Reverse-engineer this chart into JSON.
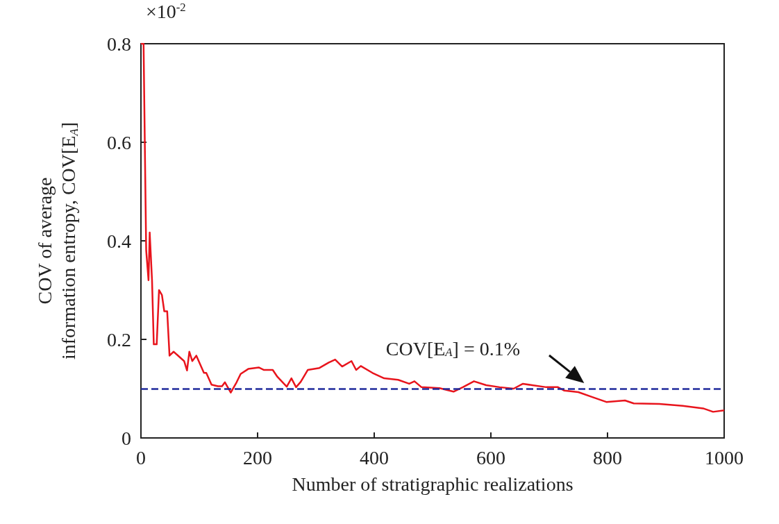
{
  "chart_data": {
    "type": "line",
    "xlabel": "Number of stratigraphic realizations",
    "ylabel": "COV of average\ninformation entropy, COV[E$_{A}$]",
    "annotations": [
      "×10$^{-2}$"
    ],
    "x": [
      0,
      4.5,
      8,
      9,
      13,
      15,
      19,
      22,
      27,
      31,
      36,
      40,
      45,
      49,
      56,
      74,
      79,
      83,
      88,
      95,
      108,
      112,
      121,
      132,
      139,
      144,
      154,
      164,
      171,
      184,
      202,
      211,
      226,
      234,
      250,
      258,
      266,
      274,
      286,
      306,
      322,
      333,
      345,
      361,
      369,
      377,
      397,
      417,
      441,
      460,
      469,
      481,
      512,
      536,
      552,
      571,
      592,
      615,
      639,
      655,
      671,
      695,
      715,
      726,
      750,
      774,
      798,
      830,
      845,
      889,
      929,
      964,
      981,
      1000
    ],
    "series": [
      {
        "color": "#e8141c",
        "values": [
          0.8,
          0.8,
          0.47,
          0.38,
          0.32,
          0.417,
          0.32,
          0.19,
          0.19,
          0.3,
          0.29,
          0.257,
          0.257,
          0.167,
          0.175,
          0.156,
          0.137,
          0.175,
          0.156,
          0.167,
          0.132,
          0.132,
          0.108,
          0.105,
          0.105,
          0.113,
          0.092,
          0.113,
          0.13,
          0.14,
          0.143,
          0.138,
          0.138,
          0.124,
          0.104,
          0.121,
          0.103,
          0.114,
          0.138,
          0.142,
          0.153,
          0.159,
          0.145,
          0.156,
          0.138,
          0.146,
          0.132,
          0.121,
          0.118,
          0.11,
          0.115,
          0.103,
          0.101,
          0.094,
          0.103,
          0.115,
          0.107,
          0.103,
          0.1,
          0.11,
          0.107,
          0.103,
          0.103,
          0.096,
          0.093,
          0.083,
          0.073,
          0.076,
          0.07,
          0.069,
          0.065,
          0.06,
          0.053,
          0.056
        ]
      }
    ],
    "xlim": [
      0,
      1000
    ],
    "xticks": [
      0,
      200,
      400,
      600,
      800,
      1000
    ],
    "ylim": [
      0,
      0.8
    ],
    "yticks": [
      0,
      0.2,
      0.4,
      0.6,
      0.8
    ],
    "ref_lines": [
      {
        "axis": "y",
        "value": 0.1,
        "label": "COV[E$_{A}$] = 0.1%",
        "color": "#1f2a9c",
        "line_style": "dashed"
      }
    ],
    "marker": "none",
    "line_style": "solid"
  }
}
